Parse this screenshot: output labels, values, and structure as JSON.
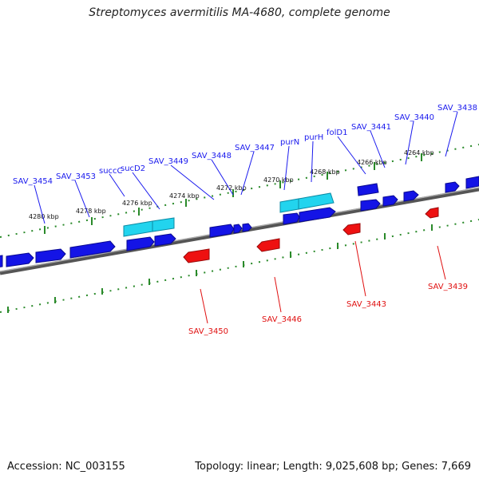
{
  "title": "Streptomyces avermitilis MA-4680, complete genome",
  "footer": {
    "accession": "Accession: NC_003155",
    "summary": "Topology: linear; Length: 9,025,608 bp; Genes: 7,669"
  },
  "colors": {
    "forward_gene": "#1414e6",
    "highlight_gene": "#22d4ee",
    "reverse_gene": "#ee1111",
    "backbone": "#777777",
    "tick_track": "#2a8a2a",
    "forward_label": "#1a1aee",
    "reverse_label": "#e01010"
  },
  "scale_labels": [
    "4280 kbp",
    "4278 kbp",
    "4276 kbp",
    "4274 kbp",
    "4272 kbp",
    "4270 kbp",
    "4268 kbp",
    "4266 kbp",
    "4264 kbp"
  ],
  "forward_labels": [
    "SAV_3454",
    "SAV_3453",
    "succC",
    "sucD2",
    "SAV_3449",
    "SAV_3448",
    "SAV_3447",
    "purN",
    "purH",
    "folD1",
    "SAV_3441",
    "SAV_3440",
    "SAV_3438"
  ],
  "reverse_labels": [
    "SAV_3450",
    "SAV_3446",
    "SAV_3443",
    "SAV_3439"
  ]
}
